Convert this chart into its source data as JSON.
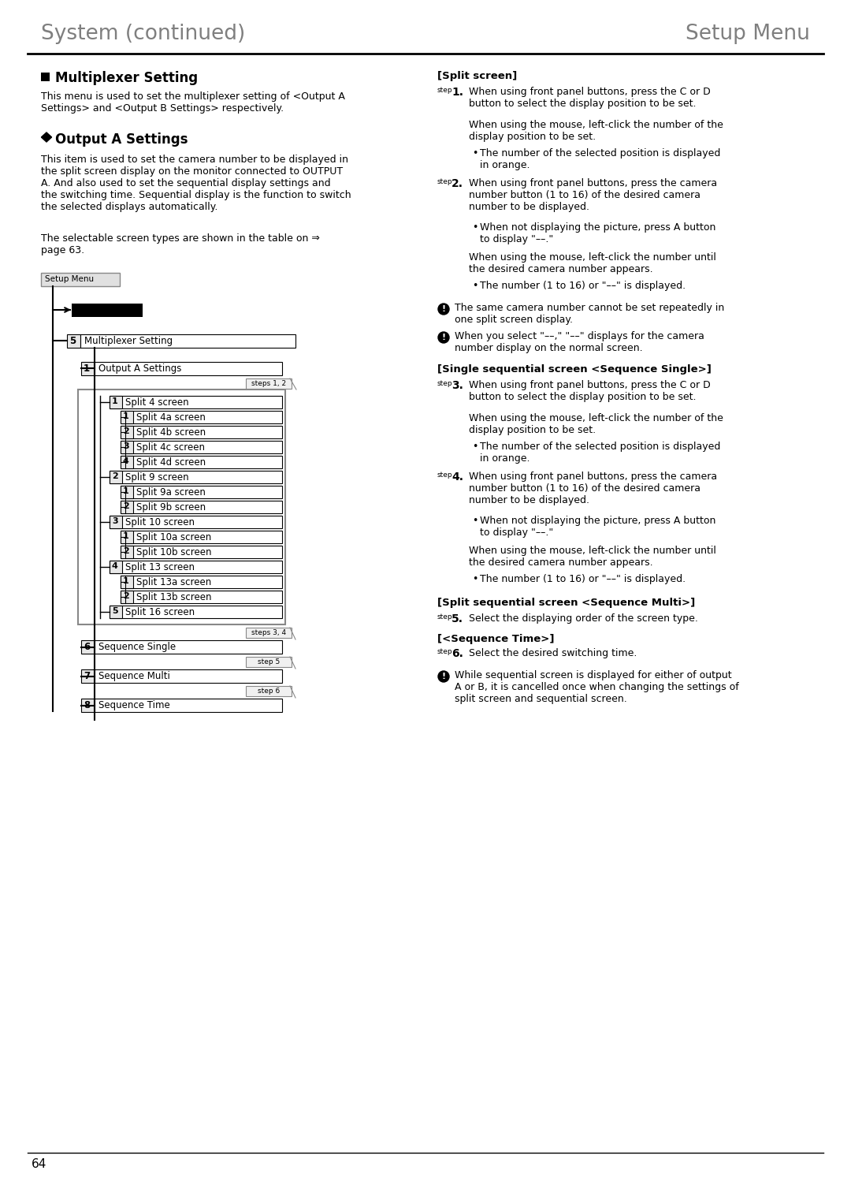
{
  "page_title_left": "System (continued)",
  "page_title_right": "Setup Menu",
  "page_number": "64",
  "section_title": "Multiplexer Setting",
  "section_intro": "This menu is used to set the multiplexer setting of <Output A\nSettings> and <Output B Settings> respectively.",
  "subsection_title": "Output A Settings",
  "subsection_body": "This item is used to set the camera number to be displayed in\nthe split screen display on the monitor connected to OUTPUT\nA. And also used to set the sequential display settings and\nthe switching time. Sequential display is the function to switch\nthe selected displays automatically.",
  "subsection_body2": "The selectable screen types are shown in the table on ⇒\npage 63.",
  "bg_color": "#ffffff",
  "header_gray": "#7f7f7f",
  "header_line_color": "#000000",
  "splits_data": [
    {
      "num": "1",
      "label": "Split 4 screen",
      "children": [
        {
          "num": "1",
          "label": "Split 4a screen"
        },
        {
          "num": "2",
          "label": "Split 4b screen"
        },
        {
          "num": "3",
          "label": "Split 4c screen"
        },
        {
          "num": "4",
          "label": "Split 4d screen"
        }
      ]
    },
    {
      "num": "2",
      "label": "Split 9 screen",
      "children": [
        {
          "num": "1",
          "label": "Split 9a screen"
        },
        {
          "num": "2",
          "label": "Split 9b screen"
        }
      ]
    },
    {
      "num": "3",
      "label": "Split 10 screen",
      "children": [
        {
          "num": "1",
          "label": "Split 10a screen"
        },
        {
          "num": "2",
          "label": "Split 10b screen"
        }
      ]
    },
    {
      "num": "4",
      "label": "Split 13 screen",
      "children": [
        {
          "num": "1",
          "label": "Split 13a screen"
        },
        {
          "num": "2",
          "label": "Split 13b screen"
        }
      ]
    },
    {
      "num": "5",
      "label": "Split 16 screen",
      "children": []
    }
  ],
  "seq_items": [
    {
      "num": "6",
      "label": "Sequence Single",
      "step_tag": "steps 3, 4"
    },
    {
      "num": "7",
      "label": "Sequence Multi",
      "step_tag": "step 5"
    },
    {
      "num": "8",
      "label": "Sequence Time",
      "step_tag": "step 6"
    }
  ]
}
